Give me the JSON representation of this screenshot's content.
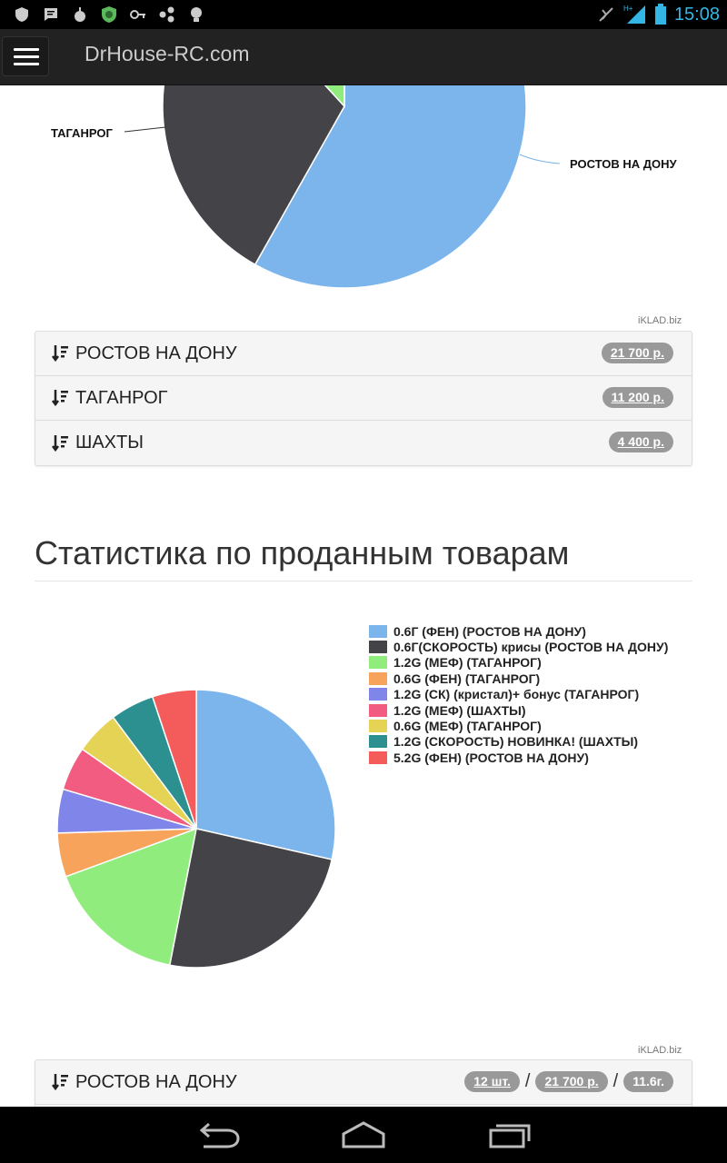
{
  "status_bar": {
    "time": "15:08",
    "icons": [
      "shield-icon",
      "message-icon",
      "android-icon",
      "security-icon",
      "key-icon",
      "share-icon",
      "lightbulb-icon",
      "no-sync-icon",
      "signal-icon",
      "battery-icon"
    ],
    "network_label": "H+"
  },
  "app_bar": {
    "title": "DrHouse-RC.com",
    "menu_icon": "hamburger-menu-icon"
  },
  "chart1": {
    "credit": "iKLAD.biz",
    "labels": {
      "taganrog": "ТАГАНРОГ",
      "rostov": "РОСТОВ НА ДОНУ"
    }
  },
  "cities_list": [
    {
      "label": "РОСТОВ НА ДОНУ",
      "amount": "21 700 р."
    },
    {
      "label": "ТАГАНРОГ",
      "amount": "11 200 р."
    },
    {
      "label": "ШАХТЫ",
      "amount": "4 400 р."
    }
  ],
  "section": {
    "title": "Статистика по проданным товарам"
  },
  "chart2": {
    "credit": "iKLAD.biz"
  },
  "chart_data": [
    {
      "type": "pie",
      "categories": [
        "РОСТОВ НА ДОНУ",
        "ТАГАНРОГ",
        "ШАХТЫ"
      ],
      "values": [
        21700,
        11200,
        4400
      ],
      "colors": [
        "#7cb5ec",
        "#434348",
        "#90ed7d"
      ],
      "title": ""
    },
    {
      "type": "pie",
      "title": "",
      "legend_position": "right",
      "series": [
        {
          "name": "0.6Г (ФЕН) (РОСТОВ НА ДОНУ)",
          "value": 28,
          "color": "#7cb5ec"
        },
        {
          "name": "0.6Г(СКОРОСТЬ) крисы (РОСТОВ НА ДОНУ)",
          "value": 24,
          "color": "#434348"
        },
        {
          "name": "1.2G (МЕФ) (ТАГАНРОГ)",
          "value": 16,
          "color": "#90ed7d"
        },
        {
          "name": "0.6G (ФЕН) (ТАГАНРОГ)",
          "value": 5,
          "color": "#f7a35c"
        },
        {
          "name": "1.2G (СК) (кристал)+ бонус (ТАГАНРОГ)",
          "value": 5,
          "color": "#8085e9"
        },
        {
          "name": "1.2G (МЕФ) (ШАХТЫ)",
          "value": 5,
          "color": "#f15c80"
        },
        {
          "name": "0.6G (МЕФ) (ТАГАНРОГ)",
          "value": 5,
          "color": "#e4d354"
        },
        {
          "name": "1.2G (СКОРОСТЬ) НОВИНКА! (ШАХТЫ)",
          "value": 5,
          "color": "#2b908f"
        },
        {
          "name": "5.2G (ФЕН) (РОСТОВ НА ДОНУ)",
          "value": 5,
          "color": "#f45b5b"
        }
      ]
    }
  ],
  "bottom_list": [
    {
      "label": "РОСТОВ НА ДОНУ",
      "count": "12 шт.",
      "amount": "21 700 р.",
      "weight": "11.6г."
    }
  ],
  "nav_bar": {
    "icons": [
      "back-icon",
      "home-icon",
      "recent-apps-icon"
    ]
  }
}
